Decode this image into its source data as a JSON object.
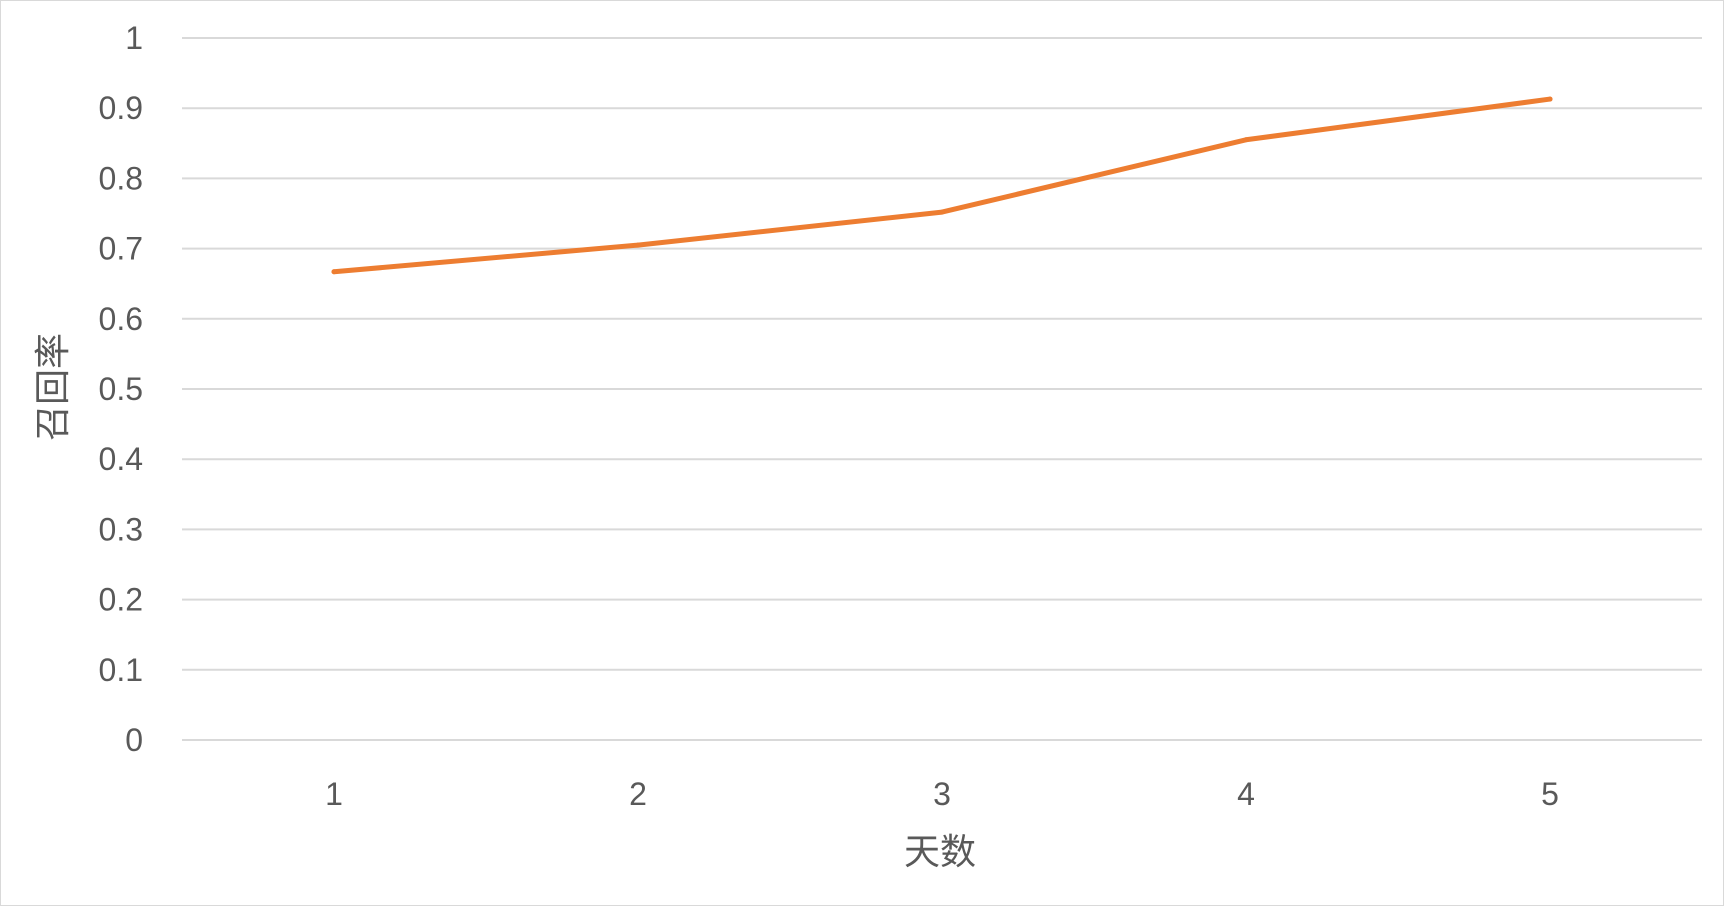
{
  "chart_data": {
    "type": "line",
    "title": "",
    "xlabel": "天数",
    "ylabel": "召回率",
    "categories": [
      "1",
      "2",
      "3",
      "4",
      "5"
    ],
    "series": [
      {
        "values": [
          0.667,
          0.705,
          0.752,
          0.855,
          0.913
        ],
        "color": "#ed7d31"
      }
    ],
    "ylim": [
      0,
      1
    ],
    "yticks": [
      "0",
      "0.1",
      "0.2",
      "0.3",
      "0.4",
      "0.5",
      "0.6",
      "0.7",
      "0.8",
      "0.9",
      "1"
    ],
    "grid": true,
    "legend": "none",
    "gridline_color": "#d9d9d9"
  }
}
